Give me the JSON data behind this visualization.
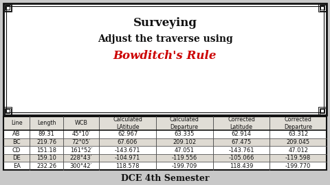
{
  "title_line1": "Surveying",
  "title_line2": "Adjust the traverse using",
  "title_line3": "Bowditch's Rule",
  "subtitle": "DCE 4th Semester",
  "col_headers": [
    "Line",
    "Length",
    "WCB",
    "Calculated\nLAtitude",
    "Calculated\nDeparture",
    "Corrected\nLatitude",
    "Corrected\nDeparture"
  ],
  "rows": [
    [
      "AB",
      "89.31",
      "45°10′",
      "62.967",
      "63.335",
      "62.914",
      "63.312"
    ],
    [
      "BC",
      "219.76",
      "72°05′",
      "67.606",
      "209.102",
      "67.475",
      "209.045"
    ],
    [
      "CD",
      "151.18",
      "161°52′",
      "-143.671",
      "47.051",
      "-143.761",
      "47.012"
    ],
    [
      "DE",
      "159.10",
      "228°43′",
      "-104.971",
      "-119.556",
      "-105.066",
      "-119.598"
    ],
    [
      "EA",
      "232.26",
      "300°42′",
      "118.578",
      "-199.709",
      "118.439",
      "-199.770"
    ]
  ],
  "page_bg": "#c8c8c8",
  "title_bg": "#ffffff",
  "table_bg": "#ffffff",
  "header_bg": "#e0ddd6",
  "row_alt_bg": "#dedad2",
  "border_dark": "#111111",
  "border_mid": "#555555",
  "title_color": "#111111",
  "bowditch_color": "#cc0000",
  "subtitle_color": "#111111",
  "col_widths_rel": [
    38,
    48,
    52,
    82,
    82,
    82,
    82
  ],
  "title_fontsize": 12,
  "title2_fontsize": 10,
  "title3_fontsize": 12,
  "header_fontsize": 5.8,
  "cell_fontsize": 6.0,
  "subtitle_fontsize": 9
}
